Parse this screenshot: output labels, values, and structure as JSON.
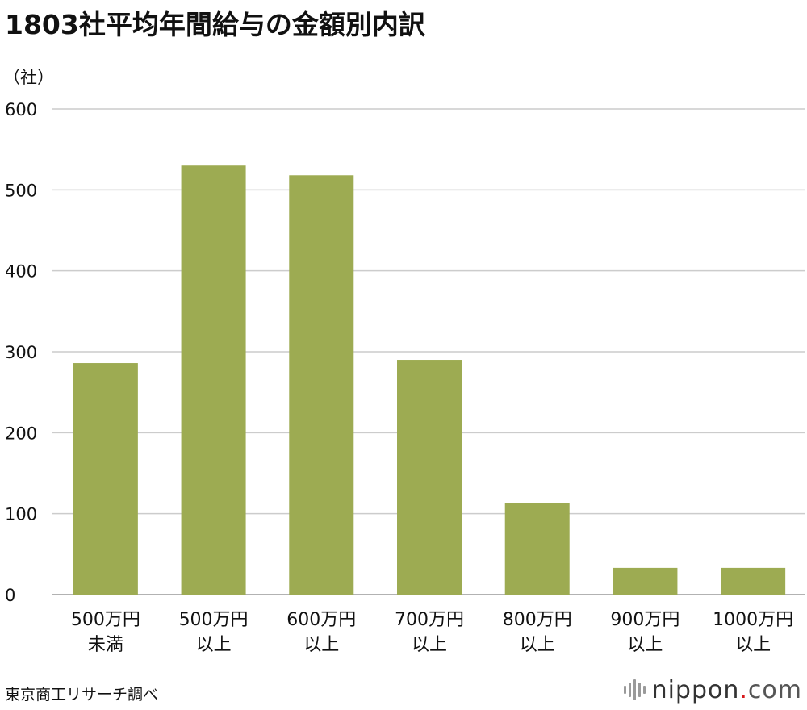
{
  "title": "1803社平均年間給与の金額別内訳",
  "source": "東京商工リサーチ調べ",
  "logo": {
    "name": "nippon",
    "dot": ".",
    "tld": "com"
  },
  "colors": {
    "bar": "#9dab52",
    "grid": "#cccccc",
    "axis": "#999999"
  },
  "chart_data": {
    "type": "bar",
    "title": "1803社平均年間給与の金額別内訳",
    "ylabel": "（社）",
    "xlabel": "",
    "categories": [
      [
        "500万円",
        "未満"
      ],
      [
        "500万円",
        "以上"
      ],
      [
        "600万円",
        "以上"
      ],
      [
        "700万円",
        "以上"
      ],
      [
        "800万円",
        "以上"
      ],
      [
        "900万円",
        "以上"
      ],
      [
        "1000万円",
        "以上"
      ]
    ],
    "values": [
      286,
      530,
      518,
      290,
      113,
      33,
      33
    ],
    "ylim": [
      0,
      600
    ],
    "yticks": [
      0,
      100,
      200,
      300,
      400,
      500,
      600
    ],
    "grid": true,
    "legend": "none"
  }
}
